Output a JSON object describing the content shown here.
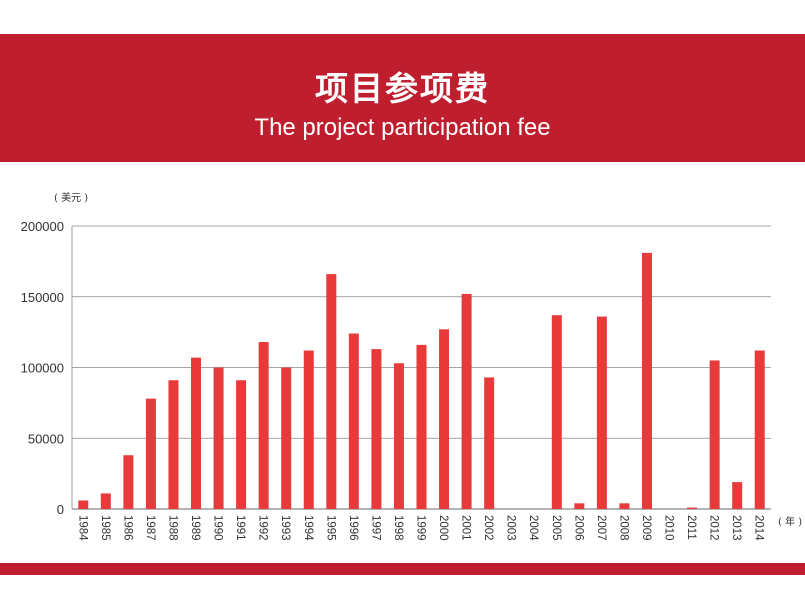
{
  "header": {
    "title_cn": "项目参项费",
    "title_en": "The project participation fee"
  },
  "colors": {
    "banner": "#be1e2d",
    "bar": "#e83a3a",
    "grid": "#888888"
  },
  "chart_data": {
    "type": "bar",
    "title": "项目参项费",
    "subtitle": "The project participation fee",
    "y_unit_label": "( 美元 )",
    "x_unit_label": "( 年 )",
    "ylim": [
      0,
      200000
    ],
    "yticks": [
      0,
      50000,
      100000,
      150000,
      200000
    ],
    "grid": true,
    "legend": "none",
    "categories": [
      "1984",
      "1985",
      "1986",
      "1987",
      "1988",
      "1989",
      "1990",
      "1991",
      "1992",
      "1993",
      "1994",
      "1995",
      "1996",
      "1997",
      "1998",
      "1999",
      "2000",
      "2001",
      "2002",
      "2003",
      "2004",
      "2005",
      "2006",
      "2007",
      "2008",
      "2009",
      "2010",
      "2011",
      "2012",
      "2013",
      "2014"
    ],
    "values": [
      6000,
      11000,
      38000,
      78000,
      91000,
      107000,
      100000,
      91000,
      118000,
      100000,
      112000,
      166000,
      124000,
      113000,
      103000,
      116000,
      127000,
      152000,
      93000,
      0,
      0,
      137000,
      4000,
      136000,
      4000,
      181000,
      0,
      1000,
      105000,
      19000,
      112000
    ]
  }
}
